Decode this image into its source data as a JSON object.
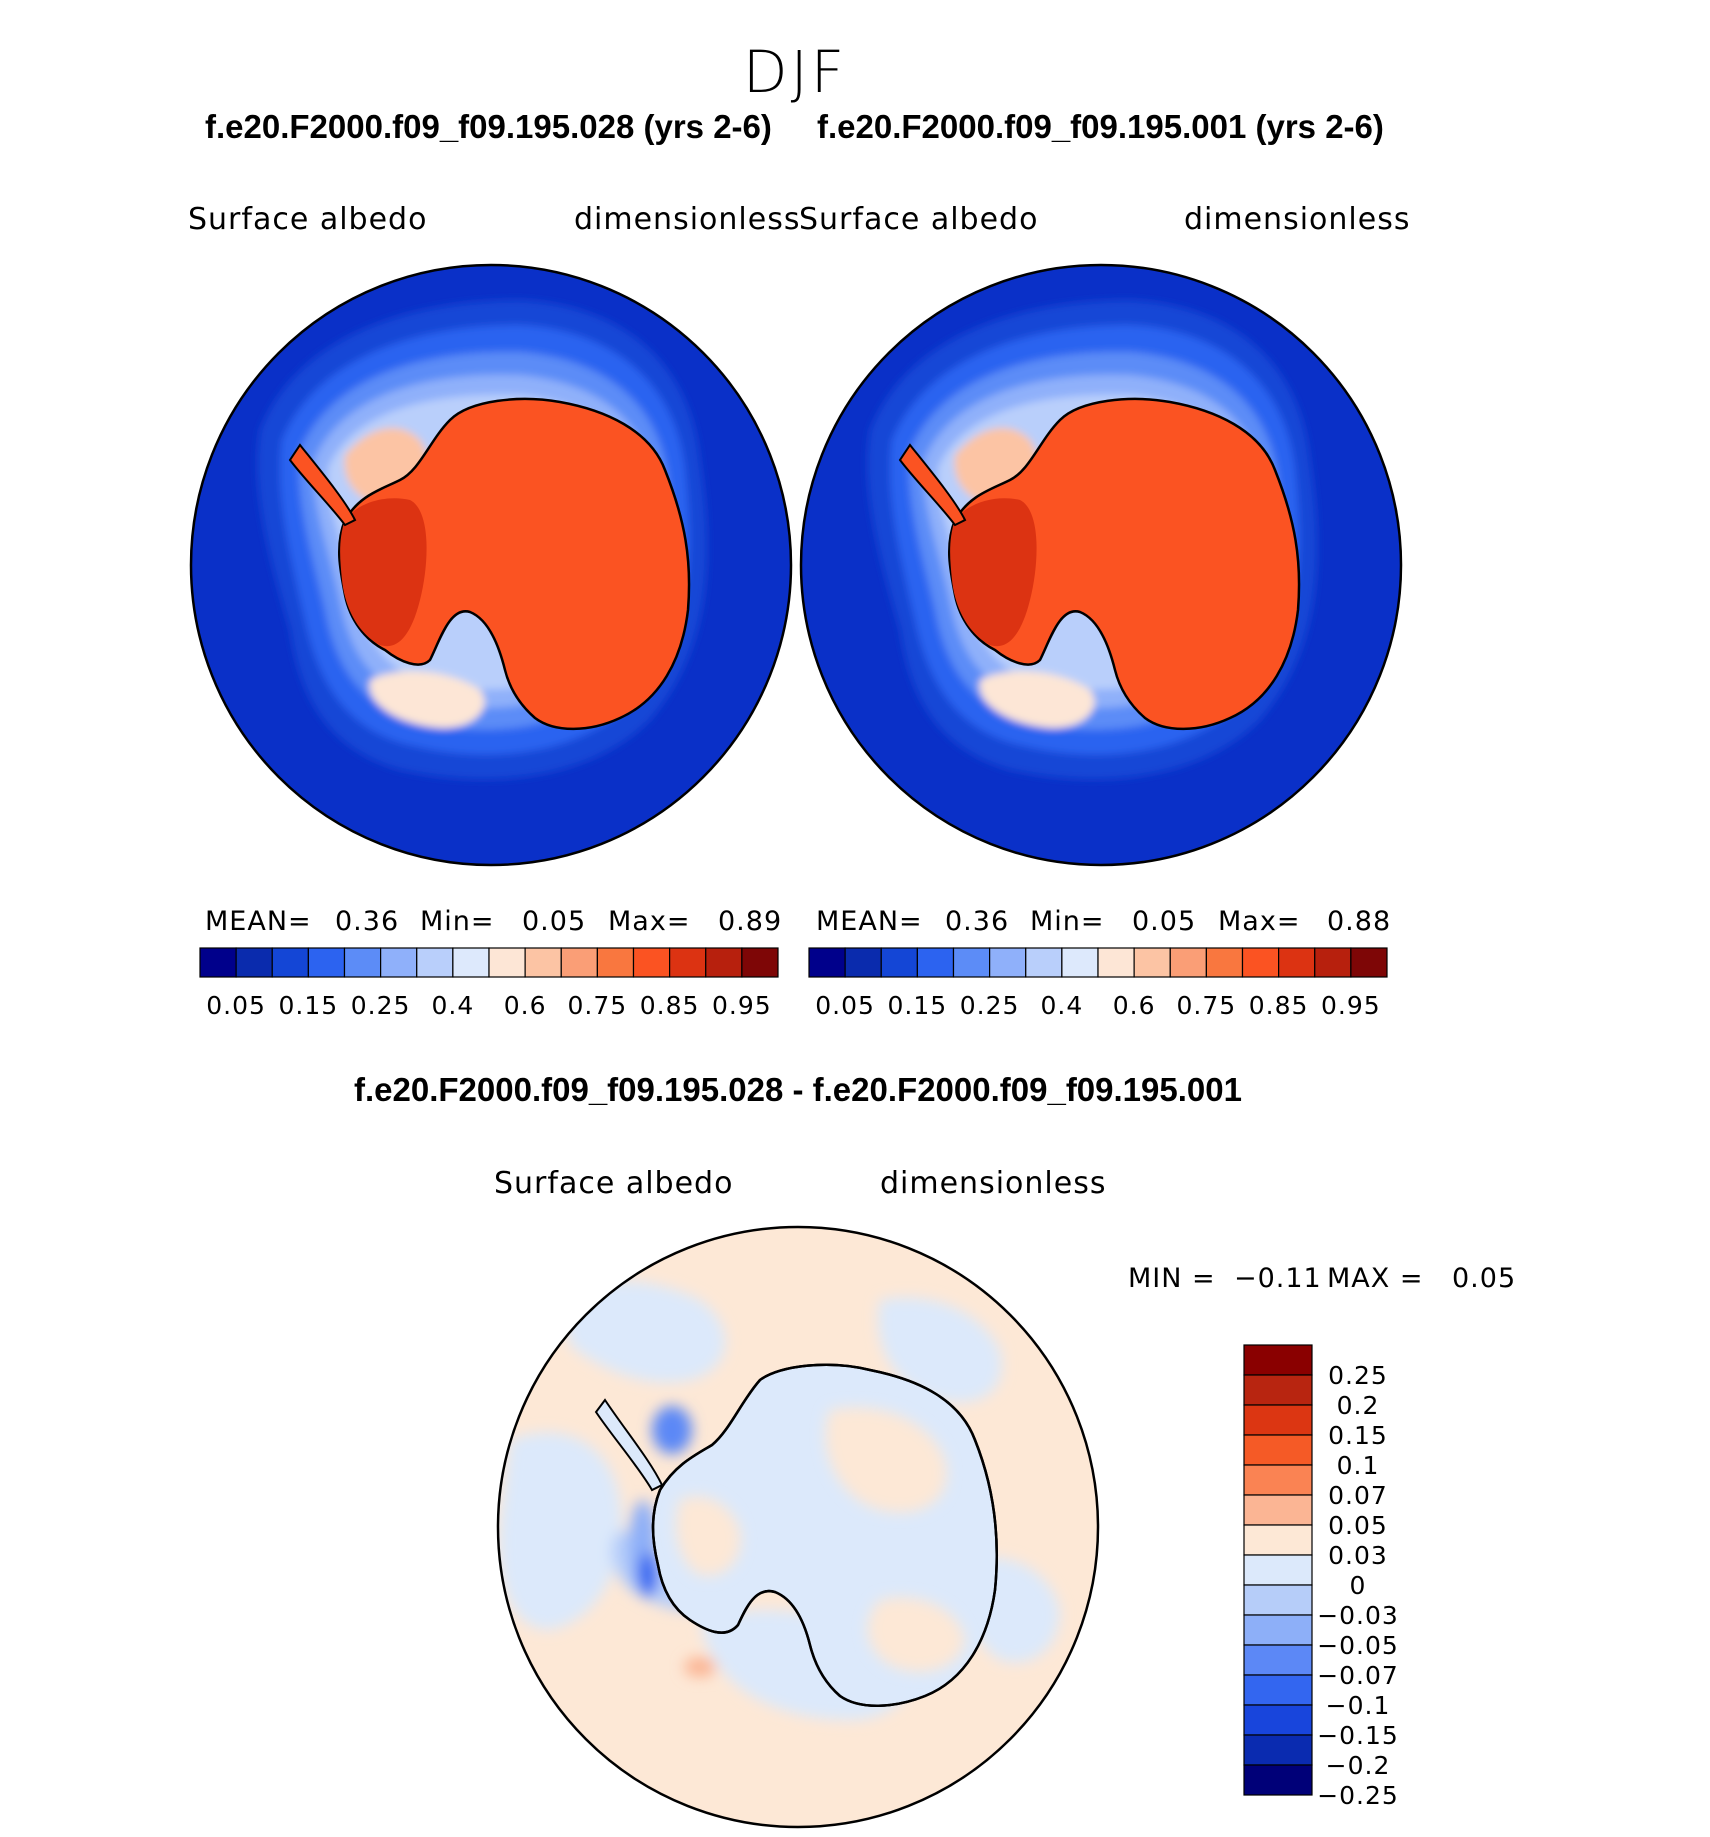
{
  "season": "DJF",
  "panels": [
    {
      "title": "f.e20.F2000.f09_f09.195.028 (yrs 2-6)",
      "variable": "Surface albedo",
      "units": "dimensionless",
      "mean_label": "MEAN=",
      "mean_value": "0.36",
      "min_label": "Min=",
      "min_value": "0.05",
      "max_label": "Max=",
      "max_value": "0.89"
    },
    {
      "title": "f.e20.F2000.f09_f09.195.001 (yrs 2-6)",
      "variable": "Surface albedo",
      "units": "dimensionless",
      "mean_label": "MEAN=",
      "mean_value": "0.36",
      "min_label": "Min=",
      "min_value": "0.05",
      "max_label": "Max=",
      "max_value": "0.88"
    }
  ],
  "abs_colorbar": {
    "colors": [
      "#00008b",
      "#0a2bad",
      "#1446d6",
      "#2c63f0",
      "#5c8cf7",
      "#8fb0fa",
      "#b9cffb",
      "#dde9fc",
      "#fde6d6",
      "#fcc4a4",
      "#fa9e76",
      "#f9773f",
      "#fb5322",
      "#dc3312",
      "#b7200d",
      "#7e0606"
    ],
    "tick_labels": [
      "0.05",
      "0.15",
      "0.25",
      "0.4",
      "0.6",
      "0.75",
      "0.85",
      "0.95"
    ]
  },
  "diff": {
    "title": "f.e20.F2000.f09_f09.195.028 - f.e20.F2000.f09_f09.195.001",
    "variable": "Surface albedo",
    "units": "dimensionless",
    "min_label": "MIN =",
    "min_value": "−0.11",
    "max_label": "MAX =",
    "max_value": "0.05"
  },
  "diff_colorbar": {
    "colors_top_to_bottom": [
      "#8a0000",
      "#b82510",
      "#dc3612",
      "#f55a26",
      "#fa8353",
      "#fbb594",
      "#fde8d6",
      "#dce9fb",
      "#b6cdf9",
      "#8daff8",
      "#5c88f6",
      "#3366f0",
      "#1845dc",
      "#0a2bb0",
      "#000078"
    ],
    "tick_labels": [
      "0.25",
      "0.2",
      "0.15",
      "0.1",
      "0.07",
      "0.05",
      "0.03",
      "0",
      "−0.03",
      "−0.05",
      "−0.07",
      "−0.1",
      "−0.15",
      "−0.2",
      "−0.25"
    ]
  },
  "map_colors": {
    "ocean": "#0a30c8",
    "ice_shades": [
      "#1446d6",
      "#2c63f0",
      "#5c8cf7",
      "#8fb0fa",
      "#b9cffb",
      "#dde9fc"
    ],
    "continent": "#fb5322",
    "continent_dark": "#dc3312",
    "ice_shelf_warm": "#fcc4a4",
    "diff_background": "#fde8d6",
    "diff_negative_light": "#dce9fb",
    "diff_negative_mid": "#8daff8",
    "diff_negative_strong": "#3366f0"
  }
}
